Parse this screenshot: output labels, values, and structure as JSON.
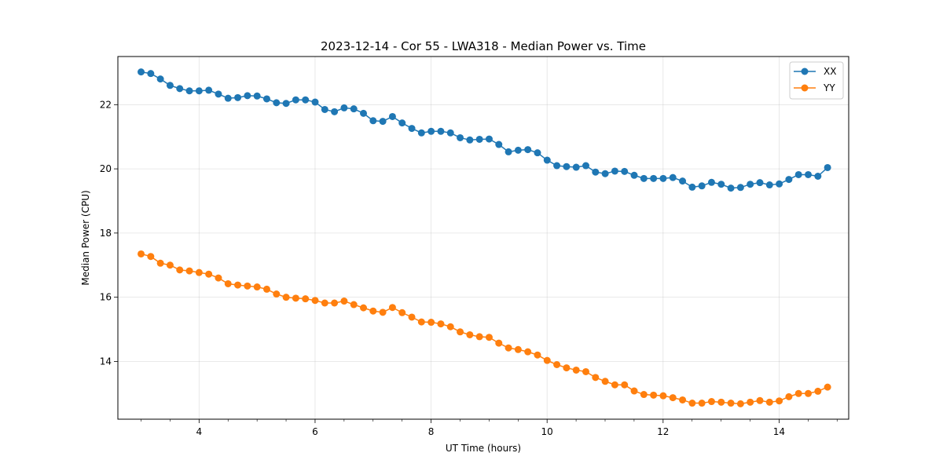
{
  "chart_data": {
    "type": "line",
    "title": "2023-12-14 - Cor 55 - LWA318 - Median Power vs. Time",
    "xlabel": "UT Time (hours)",
    "ylabel": "Median Power (CPU)",
    "xlim": [
      2.6,
      15.2
    ],
    "ylim": [
      12.2,
      23.5
    ],
    "xticks": [
      4,
      6,
      8,
      10,
      12,
      14
    ],
    "yticks": [
      14,
      16,
      18,
      20,
      22
    ],
    "grid": true,
    "legend_position": "upper-right",
    "x_start": 3.0,
    "x_step": 0.1667,
    "series": [
      {
        "name": "XX",
        "color": "#1f77b4",
        "values": [
          23.02,
          22.97,
          22.8,
          22.6,
          22.5,
          22.43,
          22.43,
          22.45,
          22.33,
          22.2,
          22.22,
          22.28,
          22.27,
          22.18,
          22.06,
          22.04,
          22.15,
          22.15,
          22.08,
          21.85,
          21.78,
          21.9,
          21.87,
          21.73,
          21.5,
          21.48,
          21.63,
          21.43,
          21.26,
          21.12,
          21.17,
          21.17,
          21.12,
          20.97,
          20.9,
          20.92,
          20.93,
          20.76,
          20.53,
          20.58,
          20.6,
          20.5,
          20.27,
          20.1,
          20.07,
          20.05,
          20.1,
          19.9,
          19.85,
          19.93,
          19.92,
          19.8,
          19.7,
          19.7,
          19.7,
          19.73,
          19.62,
          19.43,
          19.47,
          19.58,
          19.52,
          19.4,
          19.42,
          19.52,
          19.57,
          19.5,
          19.53,
          19.67,
          19.82,
          19.82,
          19.77,
          20.04
        ]
      },
      {
        "name": "YY",
        "color": "#ff7f0e",
        "values": [
          17.35,
          17.27,
          17.06,
          17.0,
          16.85,
          16.82,
          16.77,
          16.72,
          16.6,
          16.42,
          16.38,
          16.35,
          16.32,
          16.25,
          16.1,
          16.0,
          15.97,
          15.95,
          15.9,
          15.82,
          15.82,
          15.88,
          15.77,
          15.67,
          15.57,
          15.53,
          15.68,
          15.52,
          15.38,
          15.23,
          15.22,
          15.17,
          15.08,
          14.92,
          14.83,
          14.77,
          14.75,
          14.57,
          14.42,
          14.37,
          14.3,
          14.2,
          14.03,
          13.9,
          13.8,
          13.73,
          13.68,
          13.5,
          13.38,
          13.27,
          13.27,
          13.08,
          12.97,
          12.95,
          12.93,
          12.87,
          12.8,
          12.7,
          12.7,
          12.75,
          12.73,
          12.7,
          12.68,
          12.73,
          12.78,
          12.73,
          12.77,
          12.9,
          13.0,
          13.0,
          13.07,
          13.2
        ]
      }
    ]
  }
}
